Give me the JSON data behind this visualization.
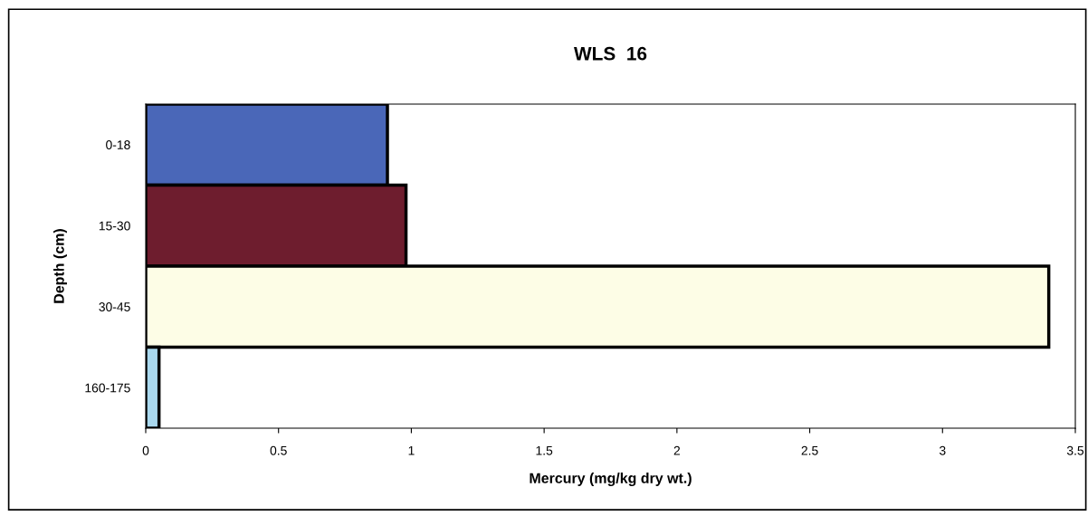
{
  "chart_data": {
    "type": "bar",
    "orientation": "horizontal",
    "title": "WLS  16",
    "categories": [
      "0-18",
      "15-30",
      "30-45",
      "160-175"
    ],
    "values": [
      0.91,
      0.98,
      3.4,
      0.05
    ],
    "colors": [
      "#4a67b8",
      "#6e1d2e",
      "#fdfde6",
      "#a9d8ee"
    ],
    "xlim": [
      0,
      3.5
    ],
    "xticks": [
      0,
      0.5,
      1,
      1.5,
      2,
      2.5,
      3,
      3.5
    ],
    "xlabel": "Mercury (mg/kg dry wt.)",
    "ylabel": "Depth (cm)",
    "grid": false,
    "legend": false
  }
}
